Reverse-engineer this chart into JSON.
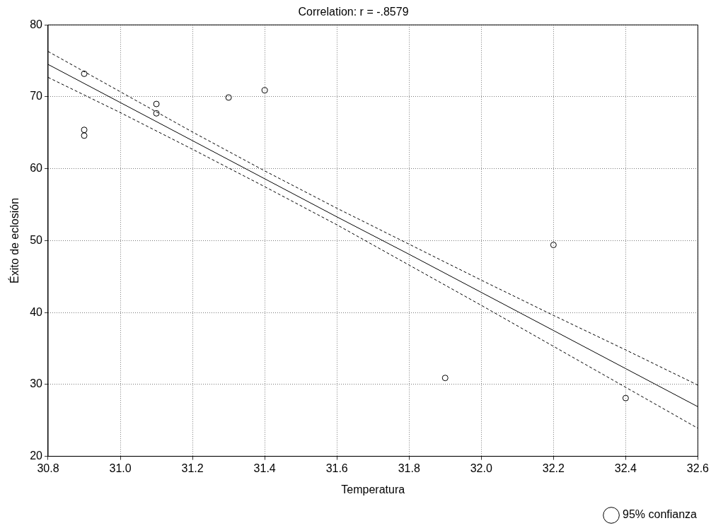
{
  "chart_data": {
    "type": "scatter",
    "title": "Correlation: r = -.8579",
    "xlabel": "Temperatura",
    "ylabel": "Éxito de eclosión",
    "xlim": [
      30.8,
      32.6
    ],
    "xticks": [
      30.8,
      {
        "value": 31,
        "label": "31.0"
      },
      31.2,
      31.4,
      31.6,
      31.8,
      {
        "value": 32,
        "label": "32.0"
      },
      32.2,
      32.4,
      32.6
    ],
    "ylim": [
      20,
      80
    ],
    "yticks": [
      20,
      30,
      40,
      50,
      60,
      70,
      80
    ],
    "grid": true,
    "legend": "bottom right",
    "series": [
      {
        "name": "95% confianza",
        "marker": "circle",
        "color": "#000000",
        "x": [
          30.9,
          30.9,
          30.9,
          31.1,
          31.1,
          31.3,
          31.4,
          31.9,
          32.2,
          32.4
        ],
        "values": [
          73.2,
          65.4,
          64.6,
          69.0,
          67.7,
          69.9,
          70.9,
          30.9,
          49.4,
          28.1
        ]
      },
      {
        "type": "line",
        "marker": "none",
        "line_style": "solid",
        "color": "#000000",
        "x": [
          30.8,
          31.0,
          31.2,
          31.4,
          31.6,
          31.8,
          32.0,
          32.2,
          32.4,
          32.6
        ],
        "values": [
          74.5,
          69.2,
          63.9,
          58.6,
          53.3,
          48.1,
          42.8,
          37.5,
          32.2,
          26.9
        ]
      },
      {
        "type": "line",
        "marker": "none",
        "line_style": "dashed",
        "color": "#000000",
        "x": [
          30.8,
          31.0,
          31.2,
          31.4,
          31.6,
          31.8,
          32.0,
          32.2,
          32.4,
          32.6
        ],
        "values": [
          76.3,
          70.7,
          65.1,
          59.7,
          54.5,
          49.5,
          44.5,
          39.6,
          34.8,
          29.9
        ]
      },
      {
        "type": "line",
        "marker": "none",
        "line_style": "dashed",
        "color": "#000000",
        "x": [
          30.8,
          31.0,
          31.2,
          31.4,
          31.6,
          31.8,
          32.0,
          32.2,
          32.4,
          32.6
        ],
        "values": [
          72.7,
          67.8,
          62.7,
          57.5,
          52.2,
          46.6,
          41.0,
          35.3,
          29.6,
          23.9
        ]
      }
    ]
  }
}
